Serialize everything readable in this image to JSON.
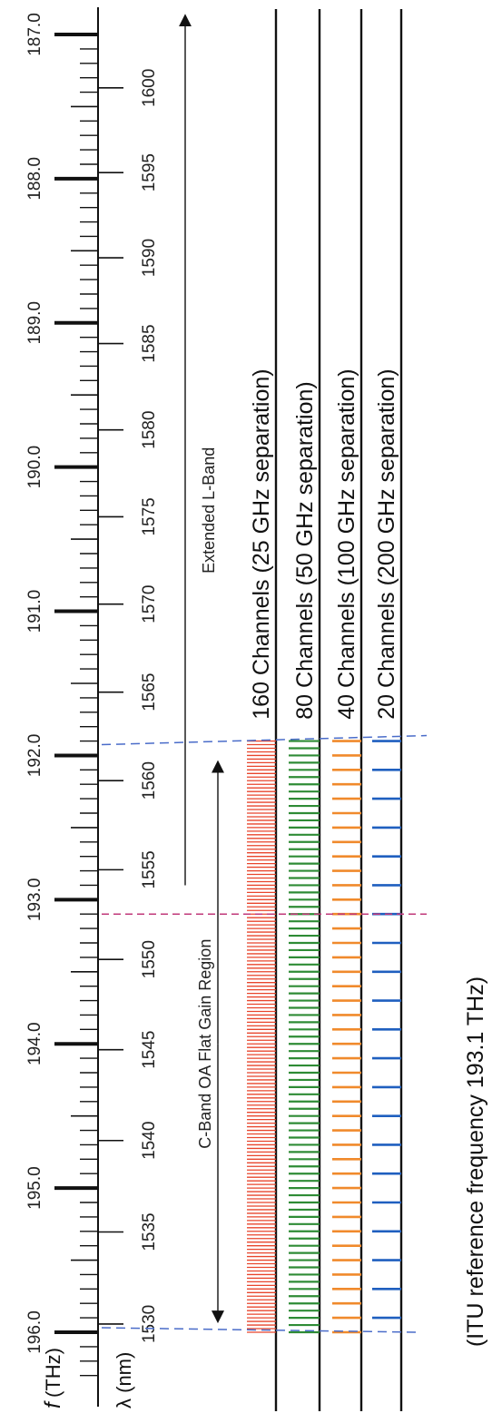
{
  "axes": {
    "frequency": {
      "symbol": "f",
      "unit": "(THz)",
      "range": [
        187.0,
        196.0
      ],
      "major_labels": [
        "187.0",
        "188.0",
        "189.0",
        "190.0",
        "191.0",
        "192.0",
        "193.0",
        "194.0",
        "195.0",
        "196.0"
      ]
    },
    "wavelength": {
      "label": "λ (nm)",
      "range": [
        1530,
        1600
      ],
      "labels": [
        "1600",
        "1595",
        "1590",
        "1585",
        "1580",
        "1575",
        "1570",
        "1565",
        "1560",
        "1555",
        "1550",
        "1545",
        "1540",
        "1535",
        "1530"
      ]
    }
  },
  "regions": {
    "extended_l_band": {
      "label": "Extended L-Band",
      "from_thz": 192.9,
      "to_thz": 187.0
    },
    "c_band": {
      "label": "C-Band OA Flat Gain Region",
      "from_thz": 196.0,
      "to_thz": 192.0
    }
  },
  "reference": {
    "frequency_thz": 193.1,
    "label": "(ITU reference frequency 193.1 THz)"
  },
  "grids": [
    {
      "label": "160 Channels (25 GHz separation)",
      "spacing_ghz": 25,
      "channels": 160,
      "color": "#e8452c"
    },
    {
      "label": "80 Channels (50 GHz separation)",
      "spacing_ghz": 50,
      "channels": 80,
      "color": "#2e8b35"
    },
    {
      "label": "40 Channels (100 GHz separation)",
      "spacing_ghz": 100,
      "channels": 40,
      "color": "#f08a2c"
    },
    {
      "label": "20 Channels (200 GHz separation)",
      "spacing_ghz": 200,
      "channels": 20,
      "color": "#1f5fbf"
    }
  ],
  "colors": {
    "boundary_dash": "#4a6cc9",
    "reference_dash": "#c0387a",
    "axis": "#111111"
  }
}
